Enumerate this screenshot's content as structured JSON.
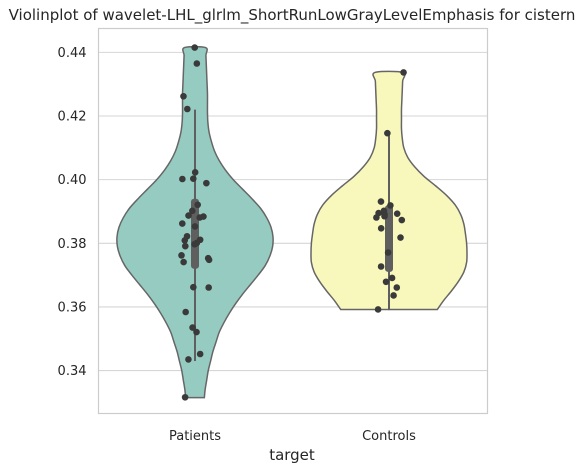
{
  "chart_data": {
    "type": "violin",
    "title": "Violinplot of wavelet-LHL_glrlm_ShortRunLowGrayLevelEmphasis for cistern",
    "xlabel": "target",
    "ylabel": "",
    "categories": [
      "Patients",
      "Controls"
    ],
    "ylim": [
      0.3265,
      0.4475
    ],
    "yticks": [
      "0.34",
      "0.36",
      "0.38",
      "0.40",
      "0.42",
      "0.44"
    ],
    "ytick_values": [
      0.34,
      0.36,
      0.38,
      0.4,
      0.42,
      0.44
    ],
    "grid": true,
    "colors": {
      "Patients": "#96cbc2",
      "Controls": "#f8f8bc",
      "outline": "#666666",
      "points": "#3a3a3a",
      "box": "#5f5f5f"
    },
    "violins": [
      {
        "category": "Patients",
        "range": [
          0.3315,
          0.4415
        ],
        "profile": [
          [
            0.3315,
            0.12
          ],
          [
            0.334,
            0.13
          ],
          [
            0.337,
            0.15
          ],
          [
            0.34,
            0.17
          ],
          [
            0.343,
            0.2
          ],
          [
            0.346,
            0.23
          ],
          [
            0.349,
            0.27
          ],
          [
            0.352,
            0.31
          ],
          [
            0.355,
            0.37
          ],
          [
            0.358,
            0.44
          ],
          [
            0.361,
            0.52
          ],
          [
            0.364,
            0.61
          ],
          [
            0.367,
            0.71
          ],
          [
            0.37,
            0.81
          ],
          [
            0.373,
            0.9
          ],
          [
            0.376,
            0.96
          ],
          [
            0.379,
            0.995
          ],
          [
            0.382,
            1.0
          ],
          [
            0.385,
            0.975
          ],
          [
            0.388,
            0.92
          ],
          [
            0.391,
            0.84
          ],
          [
            0.394,
            0.73
          ],
          [
            0.397,
            0.61
          ],
          [
            0.4,
            0.49
          ],
          [
            0.403,
            0.39
          ],
          [
            0.406,
            0.31
          ],
          [
            0.409,
            0.25
          ],
          [
            0.412,
            0.21
          ],
          [
            0.415,
            0.18
          ],
          [
            0.418,
            0.165
          ],
          [
            0.421,
            0.16
          ],
          [
            0.424,
            0.16
          ],
          [
            0.427,
            0.16
          ],
          [
            0.43,
            0.155
          ],
          [
            0.433,
            0.15
          ],
          [
            0.436,
            0.145
          ],
          [
            0.439,
            0.14
          ],
          [
            0.4415,
            0.135
          ]
        ],
        "quartiles": [
          0.372,
          0.394
        ],
        "whiskers": [
          0.343,
          0.422
        ],
        "points": [
          0.4415,
          0.4365,
          0.4262,
          0.4222,
          0.4003,
          0.4023,
          0.4002,
          0.3989,
          0.3921,
          0.3902,
          0.3887,
          0.3884,
          0.3881,
          0.3862,
          0.3853,
          0.3822,
          0.3811,
          0.3809,
          0.3801,
          0.3797,
          0.3791,
          0.3762,
          0.3753,
          0.3748,
          0.3741,
          0.3662,
          0.3661,
          0.3584,
          0.3535,
          0.3521,
          0.3452,
          0.3435,
          0.3316
        ]
      },
      {
        "category": "Controls",
        "range": [
          0.3592,
          0.4337
        ],
        "profile": [
          [
            0.3592,
            0.62
          ],
          [
            0.362,
            0.7
          ],
          [
            0.365,
            0.8
          ],
          [
            0.368,
            0.89
          ],
          [
            0.371,
            0.96
          ],
          [
            0.374,
            0.995
          ],
          [
            0.377,
            1.0
          ],
          [
            0.38,
            0.995
          ],
          [
            0.383,
            0.98
          ],
          [
            0.386,
            0.96
          ],
          [
            0.389,
            0.92
          ],
          [
            0.392,
            0.85
          ],
          [
            0.395,
            0.74
          ],
          [
            0.398,
            0.6
          ],
          [
            0.401,
            0.45
          ],
          [
            0.404,
            0.33
          ],
          [
            0.407,
            0.24
          ],
          [
            0.41,
            0.19
          ],
          [
            0.413,
            0.17
          ],
          [
            0.416,
            0.16
          ],
          [
            0.419,
            0.16
          ],
          [
            0.422,
            0.16
          ],
          [
            0.425,
            0.165
          ],
          [
            0.428,
            0.17
          ],
          [
            0.431,
            0.175
          ],
          [
            0.4337,
            0.18
          ]
        ],
        "quartiles": [
          0.371,
          0.392
        ],
        "whiskers": [
          0.359,
          0.414
        ],
        "points": [
          0.4337,
          0.4146,
          0.3931,
          0.3919,
          0.3902,
          0.3895,
          0.3893,
          0.3891,
          0.3885,
          0.3881,
          0.3873,
          0.3847,
          0.3818,
          0.3771,
          0.3727,
          0.3691,
          0.3679,
          0.3661,
          0.3636,
          0.3592
        ]
      }
    ]
  }
}
